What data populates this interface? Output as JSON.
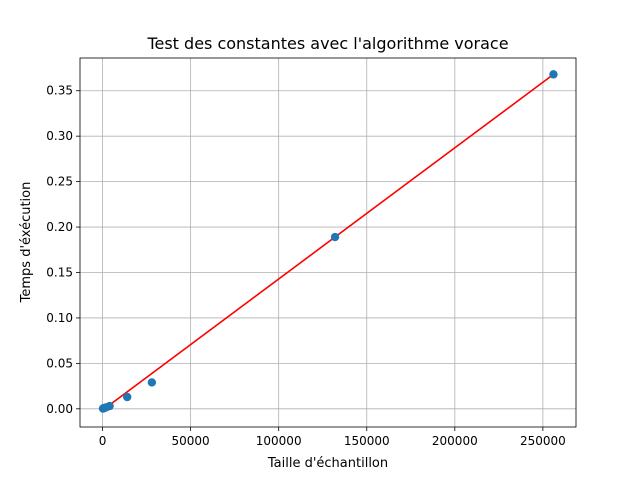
{
  "chart_data": {
    "type": "scatter",
    "title": "Test des constantes avec l'algorithme vorace",
    "xlabel": "Taille d'échantillon",
    "ylabel": "Temps d'éxécution",
    "xlim": [
      -12800,
      268800
    ],
    "ylim": [
      -0.02,
      0.386
    ],
    "grid": true,
    "x_ticks": [
      0,
      50000,
      100000,
      150000,
      200000,
      250000
    ],
    "x_tick_labels": [
      "0",
      "50000",
      "100000",
      "150000",
      "200000",
      "250000"
    ],
    "y_ticks": [
      0.0,
      0.05,
      0.1,
      0.15,
      0.2,
      0.25,
      0.3,
      0.35
    ],
    "y_tick_labels": [
      "0.00",
      "0.05",
      "0.10",
      "0.15",
      "0.20",
      "0.25",
      "0.30",
      "0.35"
    ],
    "series": [
      {
        "kind": "scatter",
        "color": "#1f77b4",
        "x": [
          250,
          500,
          1000,
          2000,
          4000,
          14000,
          28000,
          132000,
          256000
        ],
        "y": [
          0.0003,
          0.0005,
          0.001,
          0.0015,
          0.003,
          0.013,
          0.029,
          0.189,
          0.368
        ]
      },
      {
        "kind": "line",
        "color": "#ff0000",
        "x": [
          0,
          256000
        ],
        "y": [
          -0.0015,
          0.368
        ]
      }
    ]
  }
}
